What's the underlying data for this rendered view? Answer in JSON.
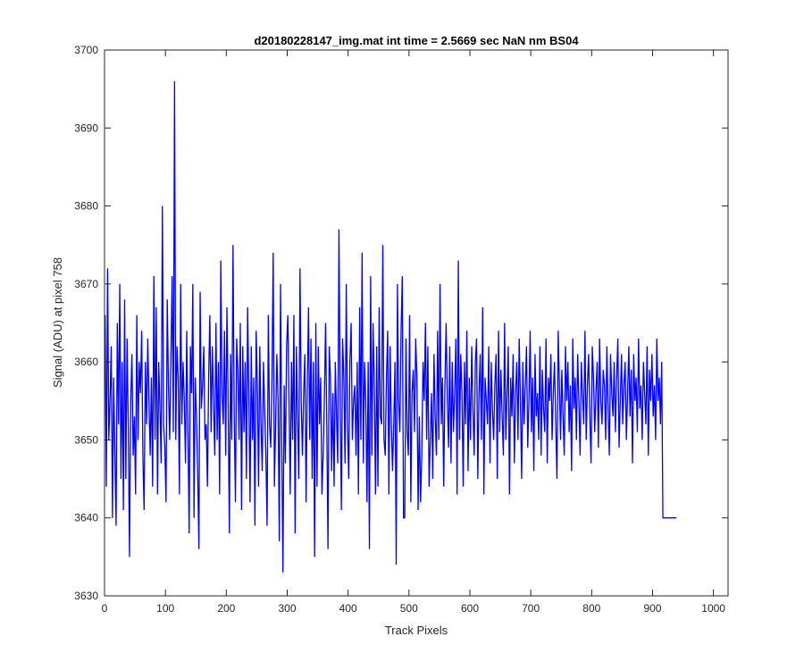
{
  "chart_data": {
    "type": "line",
    "title": "d20180228147_img.mat int time = 2.5669 sec  NaN nm BS04",
    "xlabel": "Track Pixels",
    "ylabel": "Signal (ADU) at pixel 758",
    "xlim": [
      0,
      1024
    ],
    "ylim": [
      3630,
      3700
    ],
    "xticks": [
      0,
      100,
      200,
      300,
      400,
      500,
      600,
      700,
      800,
      900,
      1000
    ],
    "yticks": [
      3630,
      3640,
      3650,
      3660,
      3670,
      3680,
      3690,
      3700
    ],
    "grid": false,
    "series": [
      {
        "color": "#0000ff",
        "x_start": 1,
        "x_step": 2,
        "values": [
          3666,
          3644,
          3672,
          3650,
          3655,
          3662,
          3640,
          3658,
          3648,
          3639,
          3665,
          3652,
          3670,
          3645,
          3660,
          3641,
          3668,
          3645,
          3663,
          3652,
          3635,
          3655,
          3661,
          3648,
          3653,
          3643,
          3666,
          3650,
          3660,
          3656,
          3664,
          3648,
          3641,
          3660,
          3652,
          3663,
          3655,
          3648,
          3658,
          3644,
          3671,
          3650,
          3667,
          3643,
          3660,
          3654,
          3647,
          3680,
          3652,
          3649,
          3642,
          3668,
          3657,
          3650,
          3660,
          3671,
          3651,
          3696,
          3650,
          3662,
          3658,
          3643,
          3670,
          3652,
          3660,
          3655,
          3647,
          3664,
          3651,
          3638,
          3662,
          3656,
          3670,
          3640,
          3658,
          3653,
          3646,
          3636,
          3669,
          3654,
          3657,
          3662,
          3650,
          3652,
          3644,
          3658,
          3666,
          3651,
          3662,
          3655,
          3648,
          3665,
          3650,
          3660,
          3643,
          3673,
          3656,
          3652,
          3664,
          3648,
          3667,
          3655,
          3638,
          3661,
          3650,
          3675,
          3653,
          3642,
          3663,
          3659,
          3650,
          3665,
          3641,
          3662,
          3651,
          3660,
          3645,
          3667,
          3656,
          3642,
          3662,
          3650,
          3658,
          3639,
          3664,
          3657,
          3644,
          3662,
          3652,
          3646,
          3660,
          3654,
          3648,
          3639,
          3666,
          3652,
          3649,
          3658,
          3674,
          3644,
          3652,
          3661,
          3655,
          3637,
          3670,
          3650,
          3633,
          3657,
          3647,
          3662,
          3666,
          3655,
          3643,
          3660,
          3650,
          3666,
          3638,
          3662,
          3653,
          3645,
          3672,
          3655,
          3648,
          3656,
          3661,
          3642,
          3657,
          3667,
          3650,
          3663,
          3645,
          3660,
          3635,
          3665,
          3644,
          3662,
          3652,
          3658,
          3643,
          3648,
          3655,
          3665,
          3652,
          3636,
          3662,
          3658,
          3646,
          3656,
          3644,
          3660,
          3653,
          3647,
          3677,
          3655,
          3641,
          3663,
          3658,
          3647,
          3670,
          3652,
          3645,
          3660,
          3665,
          3650,
          3655,
          3657,
          3648,
          3660,
          3643,
          3667,
          3650,
          3674,
          3647,
          3660,
          3655,
          3642,
          3660,
          3636,
          3671,
          3648,
          3665,
          3657,
          3643,
          3662,
          3644,
          3667,
          3653,
          3652,
          3675,
          3650,
          3648,
          3658,
          3664,
          3643,
          3662,
          3652,
          3646,
          3652,
          3660,
          3634,
          3670,
          3655,
          3651,
          3664,
          3671,
          3640,
          3640,
          3663,
          3651,
          3648,
          3666,
          3642,
          3656,
          3659,
          3651,
          3663,
          3658,
          3641,
          3653,
          3642,
          3648,
          3660,
          3655,
          3665,
          3650,
          3662,
          3644,
          3650,
          3656,
          3645,
          3661,
          3653,
          3648,
          3664,
          3650,
          3670,
          3652,
          3658,
          3644,
          3657,
          3665,
          3655,
          3649,
          3662,
          3647,
          3660,
          3651,
          3656,
          3663,
          3643,
          3673,
          3650,
          3661,
          3656,
          3644,
          3660,
          3652,
          3664,
          3646,
          3658,
          3650,
          3662,
          3654,
          3648,
          3660,
          3663,
          3645,
          3656,
          3661,
          3650,
          3667,
          3643,
          3658,
          3655,
          3652,
          3662,
          3647,
          3660,
          3654,
          3650,
          3657,
          3661,
          3645,
          3664,
          3651,
          3659,
          3653,
          3648,
          3665,
          3650,
          3656,
          3662,
          3643,
          3658,
          3653,
          3661,
          3647,
          3656,
          3660,
          3650,
          3663,
          3655,
          3645,
          3660,
          3652,
          3657,
          3662,
          3649,
          3655,
          3664,
          3651,
          3658,
          3646,
          3661,
          3653,
          3656,
          3650,
          3662,
          3648,
          3659,
          3654,
          3651,
          3663,
          3647,
          3658,
          3655,
          3661,
          3650,
          3656,
          3660,
          3652,
          3645,
          3664,
          3657,
          3650,
          3659,
          3653,
          3648,
          3662,
          3655,
          3660,
          3651,
          3657,
          3646,
          3663,
          3654,
          3658,
          3650,
          3661,
          3655,
          3648,
          3660,
          3656,
          3652,
          3664,
          3650,
          3657,
          3661,
          3653,
          3647,
          3662,
          3658,
          3651,
          3656,
          3660,
          3649,
          3663,
          3655,
          3652,
          3659,
          3657,
          3650,
          3662,
          3654,
          3648,
          3661,
          3656,
          3653,
          3660,
          3651,
          3658,
          3663,
          3649,
          3655,
          3661,
          3652,
          3657,
          3660,
          3650,
          3656,
          3662,
          3653,
          3659,
          3647,
          3661,
          3655,
          3658,
          3651,
          3663,
          3654,
          3657,
          3650,
          3660,
          3656,
          3652,
          3662,
          3648,
          3659,
          3655,
          3661,
          3653,
          3657,
          3650,
          3663,
          3655,
          3658,
          3652,
          3660,
          3640,
          3640,
          3640,
          3640,
          3640,
          3640,
          3640,
          3640,
          3640,
          3640,
          3640,
          3640
        ]
      }
    ]
  }
}
